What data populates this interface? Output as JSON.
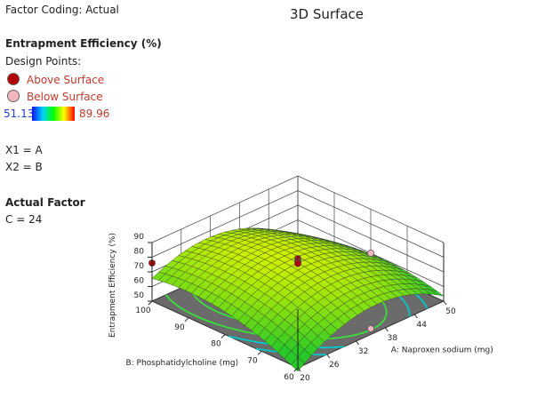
{
  "header": {
    "factor_coding": "Factor Coding: Actual",
    "title": "3D Surface"
  },
  "legend": {
    "response_title": "Entrapment Efficiency (%)",
    "design_points_label": "Design Points:",
    "above_label": "Above Surface",
    "below_label": "Below Surface",
    "above_color": "#b30000",
    "below_color": "#f4b6c0",
    "colorbar_min": "51.13",
    "colorbar_max": "89.96"
  },
  "factors": {
    "x1": "X1 = A",
    "x2": "X2 = B",
    "actual_title": "Actual Factor",
    "actual_value": "C = 24"
  },
  "chart_data": {
    "type": "surface3d",
    "title": "3D Surface",
    "x_axis": {
      "label": "A: Naproxen sodium (mg)",
      "range": [
        20,
        50
      ],
      "ticks": [
        "20",
        "26",
        "32",
        "38",
        "44",
        "50"
      ]
    },
    "y_axis": {
      "label": "B: Phosphatidylcholine (mg)",
      "range": [
        60,
        100
      ],
      "ticks": [
        "60",
        "70",
        "80",
        "90",
        "100"
      ]
    },
    "z_axis": {
      "label": "Entrapment Efficiency (%)",
      "range": [
        50,
        90
      ],
      "ticks": [
        "50",
        "60",
        "70",
        "80",
        "90"
      ]
    },
    "surface_color": "#7fd000",
    "floor_color": "#6b6b6b",
    "contour_colors": [
      "#38e038",
      "#00c8c8"
    ],
    "design_points": [
      {
        "a": 20,
        "b": 100,
        "ee": 76.0,
        "position": "above"
      },
      {
        "a": 35,
        "b": 80,
        "ee": 79.0,
        "position": "above"
      },
      {
        "a": 35,
        "b": 80,
        "ee": 77.5,
        "position": "above"
      },
      {
        "a": 35,
        "b": 80,
        "ee": 76.5,
        "position": "above"
      },
      {
        "a": 35,
        "b": 80,
        "ee": 75.7,
        "position": "above"
      },
      {
        "a": 35,
        "b": 60,
        "ee": 54.0,
        "position": "below"
      },
      {
        "a": 50,
        "b": 80,
        "ee": 60.0,
        "position": "below"
      }
    ]
  }
}
